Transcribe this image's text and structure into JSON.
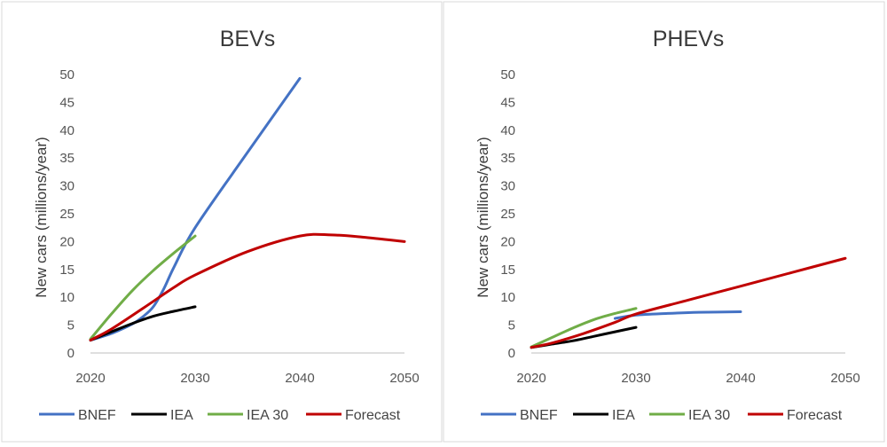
{
  "colors": {
    "BNEF": "#4472c4",
    "IEA": "#000000",
    "IEA 30": "#70ad47",
    "Forecast": "#c00000"
  },
  "chart_data": [
    {
      "type": "line",
      "title": "BEVs",
      "xlabel": "",
      "ylabel": "New cars (millions/year)",
      "xlim": [
        2020,
        2050
      ],
      "ylim": [
        0,
        50
      ],
      "x_ticks": [
        "2020",
        "2030",
        "2040",
        "2050"
      ],
      "y_ticks": [
        "0",
        "5",
        "10",
        "15",
        "20",
        "25",
        "30",
        "35",
        "40",
        "45",
        "50"
      ],
      "grid": false,
      "legend": "bottom",
      "series": [
        {
          "name": "BNEF",
          "x": [
            2020,
            2022,
            2024,
            2025,
            2026,
            2027,
            2028,
            2030,
            2035,
            2040
          ],
          "y": [
            2.3,
            3.5,
            5.2,
            6.5,
            8.3,
            11.5,
            15.5,
            22.5,
            36,
            49.3
          ]
        },
        {
          "name": "IEA",
          "x": [
            2020,
            2022,
            2024,
            2026,
            2028,
            2030
          ],
          "y": [
            2.3,
            3.8,
            5.3,
            6.6,
            7.5,
            8.3
          ]
        },
        {
          "name": "IEA 30",
          "x": [
            2020,
            2022,
            2024,
            2026,
            2028,
            2030
          ],
          "y": [
            2.5,
            7,
            11.2,
            14.8,
            18,
            21
          ]
        },
        {
          "name": "Forecast",
          "x": [
            2020,
            2022,
            2025,
            2028,
            2030,
            2035,
            2040,
            2043,
            2046,
            2050
          ],
          "y": [
            2.3,
            4.3,
            8,
            11.8,
            14,
            18.2,
            21,
            21.2,
            20.8,
            20
          ]
        }
      ]
    },
    {
      "type": "line",
      "title": "PHEVs",
      "xlabel": "",
      "ylabel": "New cars (millions/year)",
      "xlim": [
        2020,
        2050
      ],
      "ylim": [
        0,
        50
      ],
      "x_ticks": [
        "2020",
        "2030",
        "2040",
        "2050"
      ],
      "y_ticks": [
        "0",
        "5",
        "10",
        "15",
        "20",
        "25",
        "30",
        "35",
        "40",
        "45",
        "50"
      ],
      "grid": false,
      "legend": "bottom",
      "series": [
        {
          "name": "BNEF",
          "x": [
            2028,
            2030,
            2033,
            2036,
            2040
          ],
          "y": [
            6.2,
            6.8,
            7.1,
            7.3,
            7.4
          ]
        },
        {
          "name": "IEA",
          "x": [
            2020,
            2022,
            2024,
            2026,
            2028,
            2030
          ],
          "y": [
            1,
            1.6,
            2.2,
            3,
            3.8,
            4.6
          ]
        },
        {
          "name": "IEA 30",
          "x": [
            2020,
            2022,
            2024,
            2026,
            2028,
            2030
          ],
          "y": [
            1.1,
            2.8,
            4.5,
            6,
            7.1,
            8
          ]
        },
        {
          "name": "Forecast",
          "x": [
            2020,
            2022,
            2025,
            2028,
            2030,
            2035,
            2040,
            2045,
            2050
          ],
          "y": [
            1,
            1.8,
            3.5,
            5.5,
            7,
            9.5,
            12,
            14.5,
            17
          ]
        }
      ]
    }
  ]
}
